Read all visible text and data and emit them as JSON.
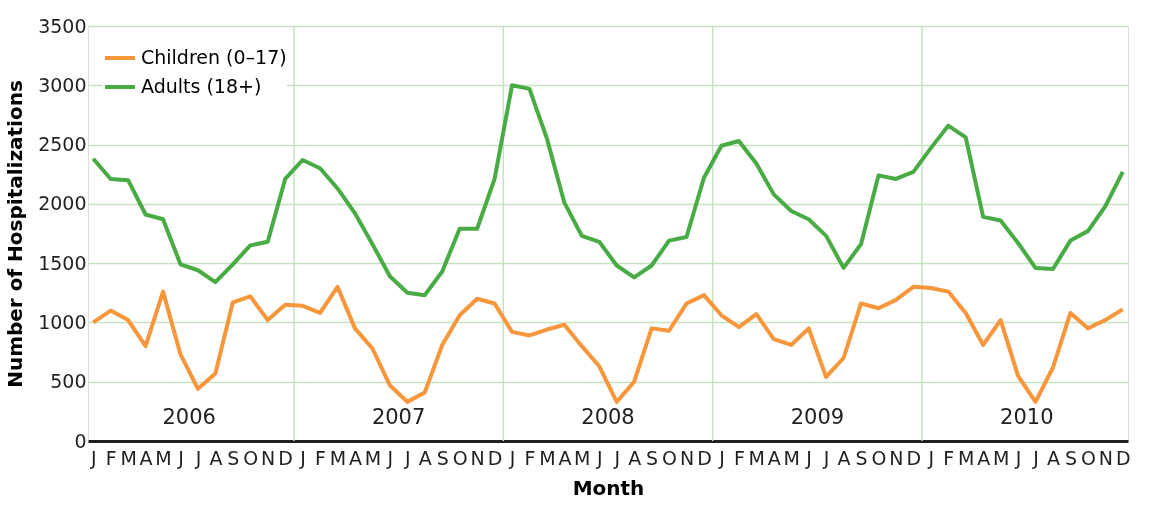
{
  "chart_data": {
    "type": "line",
    "xlabel": "Month",
    "ylabel": "Number of Hospitalizations",
    "categories": [
      "J",
      "F",
      "M",
      "A",
      "M",
      "J",
      "J",
      "A",
      "S",
      "O",
      "N",
      "D",
      "J",
      "F",
      "M",
      "A",
      "M",
      "J",
      "J",
      "A",
      "S",
      "O",
      "N",
      "D",
      "J",
      "F",
      "M",
      "A",
      "M",
      "J",
      "J",
      "A",
      "S",
      "O",
      "N",
      "D",
      "J",
      "F",
      "M",
      "A",
      "M",
      "J",
      "J",
      "A",
      "S",
      "O",
      "N",
      "D",
      "J",
      "F",
      "M",
      "A",
      "M",
      "J",
      "J",
      "A",
      "S",
      "O",
      "N",
      "D"
    ],
    "series": [
      {
        "name": "Children (0–17)",
        "color": "#f7963b",
        "values": [
          1000,
          1100,
          1020,
          800,
          1260,
          730,
          440,
          570,
          1170,
          1220,
          1020,
          1150,
          1140,
          1080,
          1300,
          950,
          780,
          470,
          330,
          410,
          810,
          1060,
          1200,
          1160,
          920,
          890,
          940,
          980,
          800,
          630,
          330,
          500,
          950,
          930,
          1160,
          1230,
          1060,
          960,
          1070,
          860,
          810,
          950,
          540,
          700,
          1160,
          1120,
          1190,
          1300,
          1290,
          1260,
          1080,
          810,
          1020,
          550,
          330,
          620,
          1080,
          950,
          1020,
          1110
        ]
      },
      {
        "name": "Adults (18+)",
        "color": "#48ab44",
        "values": [
          2380,
          2210,
          2200,
          1910,
          1870,
          1490,
          1440,
          1340,
          1490,
          1650,
          1680,
          2210,
          2370,
          2300,
          2130,
          1920,
          1660,
          1390,
          1250,
          1230,
          1430,
          1790,
          1790,
          2210,
          3000,
          2970,
          2550,
          2010,
          1730,
          1680,
          1480,
          1380,
          1480,
          1690,
          1720,
          2220,
          2490,
          2530,
          2340,
          2080,
          1940,
          1870,
          1730,
          1460,
          1660,
          2240,
          2210,
          2270,
          2470,
          2660,
          2560,
          1890,
          1860,
          1670,
          1460,
          1450,
          1690,
          1770,
          1980,
          2270
        ]
      }
    ],
    "annotations": [
      "2006",
      "2007",
      "2008",
      "2009",
      "2010"
    ],
    "ylim": [
      0,
      3500
    ],
    "yticks": [
      0,
      500,
      1000,
      1500,
      2000,
      2500,
      3000,
      3500
    ],
    "grid": true,
    "legend": "top left",
    "marker": "none",
    "line_style": "solid"
  }
}
